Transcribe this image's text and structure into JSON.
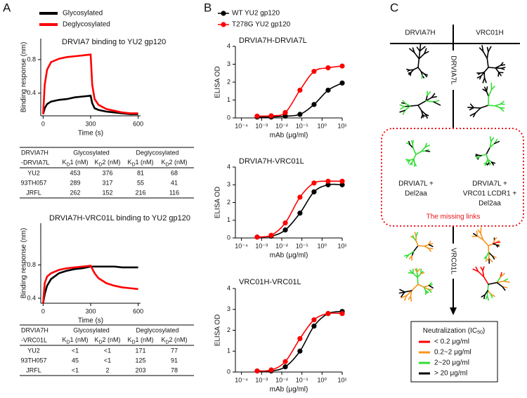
{
  "panel_labels": [
    "A",
    "B",
    "C"
  ],
  "chart_data": [
    {
      "type": "line",
      "title": "DRVIA7 binding to YU2 gp120",
      "x_label": "Time (s)",
      "y_label": "Binding response (nm)",
      "x": [
        0,
        10,
        25,
        50,
        100,
        150,
        200,
        250,
        300,
        310,
        325,
        350,
        400,
        450,
        500,
        550,
        600
      ],
      "series": [
        {
          "name": "Glycosylated",
          "color": "#000000",
          "values": [
            0.15,
            0.22,
            0.27,
            0.3,
            0.32,
            0.33,
            0.35,
            0.36,
            0.37,
            0.28,
            0.22,
            0.2,
            0.18,
            0.17,
            0.16,
            0.15,
            0.15
          ]
        },
        {
          "name": "Deglycosylated",
          "color": "#ff0000",
          "values": [
            0.15,
            0.5,
            0.68,
            0.77,
            0.81,
            0.83,
            0.84,
            0.85,
            0.86,
            0.5,
            0.33,
            0.26,
            0.21,
            0.19,
            0.17,
            0.16,
            0.16
          ]
        }
      ],
      "xlim": [
        -15,
        615
      ],
      "xticks": [
        0,
        300,
        600
      ],
      "ylim": [
        0.13,
        1.05
      ],
      "yticks": [
        0.4,
        0.8
      ],
      "markers": false,
      "log_x": false
    },
    {
      "type": "line",
      "title": "DRVIA7H-VRC01L binding to YU2 gp120",
      "x_label": "Time (s)",
      "y_label": "Binding response (nm)",
      "x": [
        0,
        10,
        25,
        50,
        100,
        150,
        200,
        250,
        300,
        325,
        350,
        400,
        450,
        500,
        550,
        600
      ],
      "series": [
        {
          "color": "#000000",
          "values": [
            0.34,
            0.45,
            0.55,
            0.63,
            0.7,
            0.73,
            0.75,
            0.76,
            0.78,
            0.78,
            0.78,
            0.78,
            0.78,
            0.77,
            0.77,
            0.77
          ]
        },
        {
          "color": "#ff0000",
          "values": [
            0.34,
            0.58,
            0.66,
            0.7,
            0.74,
            0.76,
            0.77,
            0.78,
            0.79,
            0.7,
            0.64,
            0.58,
            0.55,
            0.53,
            0.52,
            0.51
          ]
        }
      ],
      "xlim": [
        -15,
        615
      ],
      "xticks": [
        0,
        300,
        600
      ],
      "ylim": [
        0.34,
        1.3
      ],
      "yticks": [
        0.4,
        0.8
      ],
      "markers": false,
      "log_x": false
    },
    {
      "type": "line",
      "title": "DRVIA7H-DRVIA7L",
      "x_label": "mAb (μg/ml)",
      "y_label": "ELISA OD",
      "x": [
        0.0006,
        0.003,
        0.015,
        0.08,
        0.4,
        2,
        10
      ],
      "series": [
        {
          "name": "WT YU2 gp120",
          "color": "#000000",
          "values": [
            0.05,
            0.05,
            0.1,
            0.2,
            0.75,
            1.55,
            1.95
          ]
        },
        {
          "name": "T278G YU2 gp120",
          "color": "#ff0000",
          "values": [
            0.1,
            0.12,
            0.3,
            1.55,
            2.6,
            2.8,
            2.9
          ]
        }
      ],
      "xlim": [
        5e-05,
        10
      ],
      "log_x": true,
      "markers": true,
      "xticks": [
        {
          "value": 0.0001,
          "label": "10⁻⁴"
        },
        {
          "value": 0.001,
          "label": "10⁻³"
        },
        {
          "value": 0.01,
          "label": "10⁻²"
        },
        {
          "value": 0.1,
          "label": "10⁻¹"
        },
        {
          "value": 1,
          "label": "10⁰"
        },
        {
          "value": 10,
          "label": "10¹"
        }
      ],
      "ylim": [
        0,
        4
      ],
      "yticks": [
        0,
        1,
        2,
        3,
        4
      ]
    },
    {
      "type": "line",
      "title": "DRVIA7H-VRC01L",
      "x_label": "mAb (μg/ml)",
      "y_label": "ELISA OD",
      "x": [
        0.0006,
        0.003,
        0.015,
        0.08,
        0.4,
        2,
        10
      ],
      "series": [
        {
          "color": "#000000",
          "values": [
            0.05,
            0.1,
            0.45,
            1.4,
            2.6,
            3.0,
            3.0
          ]
        },
        {
          "color": "#ff0000",
          "values": [
            0.05,
            0.15,
            0.85,
            2.3,
            3.1,
            3.2,
            3.2
          ]
        }
      ],
      "xlim": [
        5e-05,
        10
      ],
      "log_x": true,
      "markers": true,
      "xticks": [
        {
          "value": 0.0001,
          "label": "10⁻⁴"
        },
        {
          "value": 0.001,
          "label": "10⁻³"
        },
        {
          "value": 0.01,
          "label": "10⁻²"
        },
        {
          "value": 0.1,
          "label": "10⁻¹"
        },
        {
          "value": 1,
          "label": "10⁰"
        },
        {
          "value": 10,
          "label": "10¹"
        }
      ],
      "ylim": [
        0,
        4
      ],
      "yticks": [
        0,
        1,
        2,
        3,
        4
      ]
    },
    {
      "type": "line",
      "title": "VRC01H-VRC01L",
      "x_label": "mAb (μg/ml)",
      "y_label": "ELISA OD",
      "x": [
        0.0006,
        0.003,
        0.015,
        0.08,
        0.4,
        2,
        10
      ],
      "series": [
        {
          "color": "#000000",
          "values": [
            0.05,
            0.05,
            0.25,
            1.0,
            2.2,
            2.8,
            2.9
          ]
        },
        {
          "color": "#ff0000",
          "values": [
            0.05,
            0.1,
            0.5,
            1.6,
            2.5,
            2.8,
            2.8
          ]
        }
      ],
      "xlim": [
        5e-05,
        10
      ],
      "log_x": true,
      "markers": true,
      "xticks": [
        {
          "value": 0.0001,
          "label": "10⁻⁴"
        },
        {
          "value": 0.001,
          "label": "10⁻³"
        },
        {
          "value": 0.01,
          "label": "10⁻²"
        },
        {
          "value": 0.1,
          "label": "10⁻¹"
        },
        {
          "value": 1,
          "label": "10⁰"
        },
        {
          "value": 10,
          "label": "10¹"
        }
      ],
      "ylim": [
        0,
        4
      ],
      "yticks": [
        0,
        1,
        2,
        3,
        4
      ]
    }
  ],
  "tables": [
    {
      "corner": [
        "DRVIA7H",
        "-DRVIA7L"
      ],
      "groups": [
        "Glycosylated",
        "Deglycosylated"
      ],
      "columns": [
        [
          "K",
          "D",
          "1 (nM)"
        ],
        [
          "K",
          "D",
          "2 (nM)"
        ],
        [
          "K",
          "D",
          "1 (nM)"
        ],
        [
          "K",
          "D",
          "2 (nM)"
        ]
      ],
      "rows": [
        [
          "YU2",
          453,
          376,
          81,
          68
        ],
        [
          "93TH057",
          289,
          317,
          55,
          41
        ],
        [
          "JRFL",
          262,
          152,
          216,
          116
        ]
      ]
    },
    {
      "corner": [
        "DRVIA7H",
        "-VRC01L"
      ],
      "groups": [
        "Glycosylated",
        "Deglycosylated"
      ],
      "columns": [
        [
          "K",
          "D",
          "1 (nM)"
        ],
        [
          "K",
          "D",
          "2 (nM)"
        ],
        [
          "K",
          "D",
          "1 (nM)"
        ],
        [
          "K",
          "D",
          "2 (nM)"
        ]
      ],
      "rows": [
        [
          "YU2",
          "<1",
          "<1",
          171,
          77
        ],
        [
          "93TH057",
          45,
          "<1",
          125,
          91
        ],
        [
          "JRFL",
          "<1",
          2,
          203,
          78
        ]
      ]
    }
  ],
  "diagram": {
    "heavy_chains": [
      "DRVIA7H",
      "VRC01H"
    ],
    "light_chains": [
      "DRVIA7L",
      "VRC01L"
    ],
    "intermediates": [
      [
        "DRVIA7L +",
        "Del2aa"
      ],
      [
        "DRVIA7L +",
        "VRC01 LCDR1 +",
        "Del2aa"
      ]
    ],
    "missing_links": "The missing links",
    "legend": {
      "title": [
        "Neutralization (IC",
        "50",
        ")"
      ],
      "items": [
        {
          "label": "< 0.2 μg/ml",
          "color": "#ff0000"
        },
        {
          "label": "0.2~2 μg/ml",
          "color": "#f7941d"
        },
        {
          "label": "2~20 μg/ml",
          "color": "#33dd33"
        },
        {
          "label": "> 20 μg/ml",
          "color": "#000000"
        }
      ]
    }
  }
}
